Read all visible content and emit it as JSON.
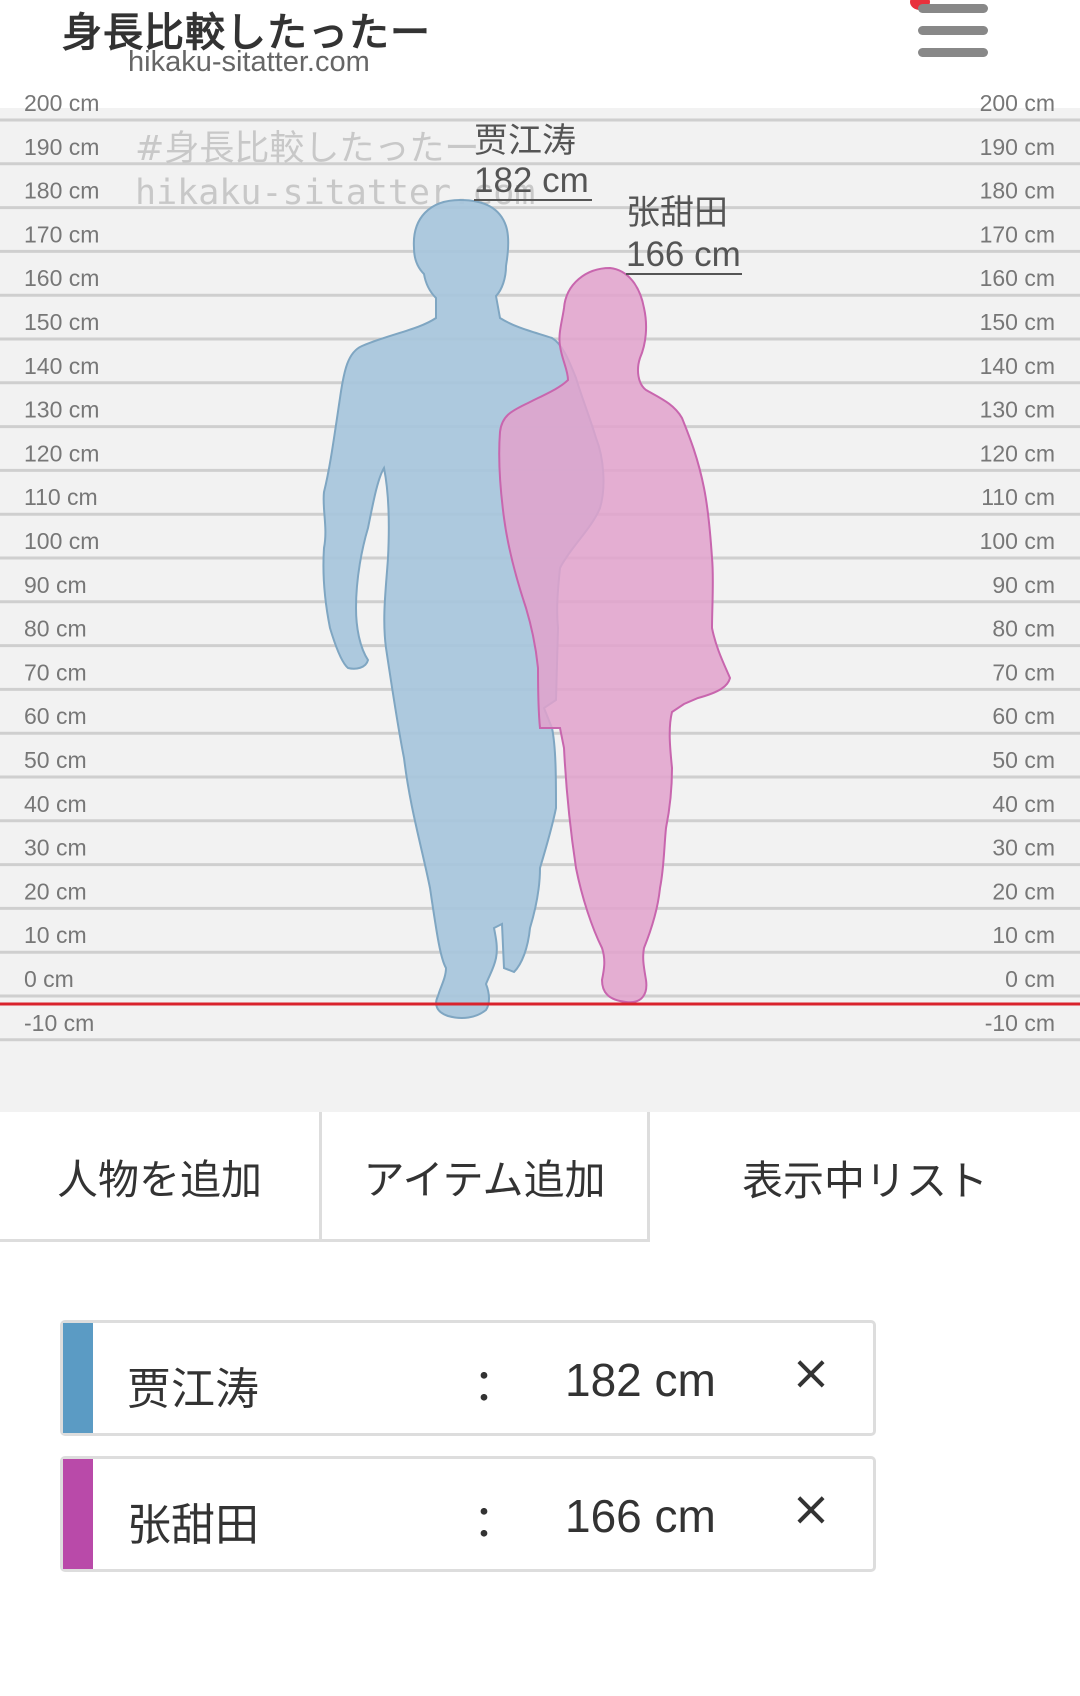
{
  "header": {
    "title": "身長比較したったー",
    "domain": "hikaku-sitatter.com",
    "menu_icon": "hamburger-menu-icon"
  },
  "scale": {
    "left_labels": [
      "200 cm",
      "190 cm",
      "180 cm",
      "170 cm",
      "160 cm",
      "150 cm",
      "140 cm",
      "130 cm",
      "120 cm",
      "110 cm",
      "100 cm",
      "90 cm",
      "80 cm",
      "70 cm",
      "60 cm",
      "50 cm",
      "40 cm",
      "30 cm",
      "20 cm",
      "10 cm",
      "0 cm",
      "-10 cm"
    ],
    "right_labels": [
      "200 cm",
      "190 cm",
      "180 cm",
      "170 cm",
      "160 cm",
      "150 cm",
      "140 cm",
      "130 cm",
      "120 cm",
      "110 cm",
      "100 cm",
      "90 cm",
      "80 cm",
      "70 cm",
      "60 cm",
      "50 cm",
      "40 cm",
      "30 cm",
      "20 cm",
      "10 cm",
      "0 cm",
      "-10 cm"
    ],
    "ground_line_color": "#d9232d"
  },
  "watermark": {
    "line1": "#身長比較したったー",
    "line2": "hikaku-sitatter.com"
  },
  "figures": [
    {
      "name": "贾江涛",
      "height_label": "182 cm",
      "height_cm": 182,
      "color": "#a7c6dc"
    },
    {
      "name": "张甜田",
      "height_label": "166 cm",
      "height_cm": 166,
      "color": "#e2a2cd"
    }
  ],
  "tabs": {
    "add_person": "人物を追加",
    "add_item": "アイテム追加",
    "display_list": "表示中リスト"
  },
  "list": {
    "separator": "：",
    "remove_glyph": "×",
    "items": [
      {
        "name": "贾江涛",
        "value": "182 cm",
        "color": "#5b9bc4"
      },
      {
        "name": "张甜田",
        "value": "166 cm",
        "color": "#b94aa9"
      }
    ]
  }
}
